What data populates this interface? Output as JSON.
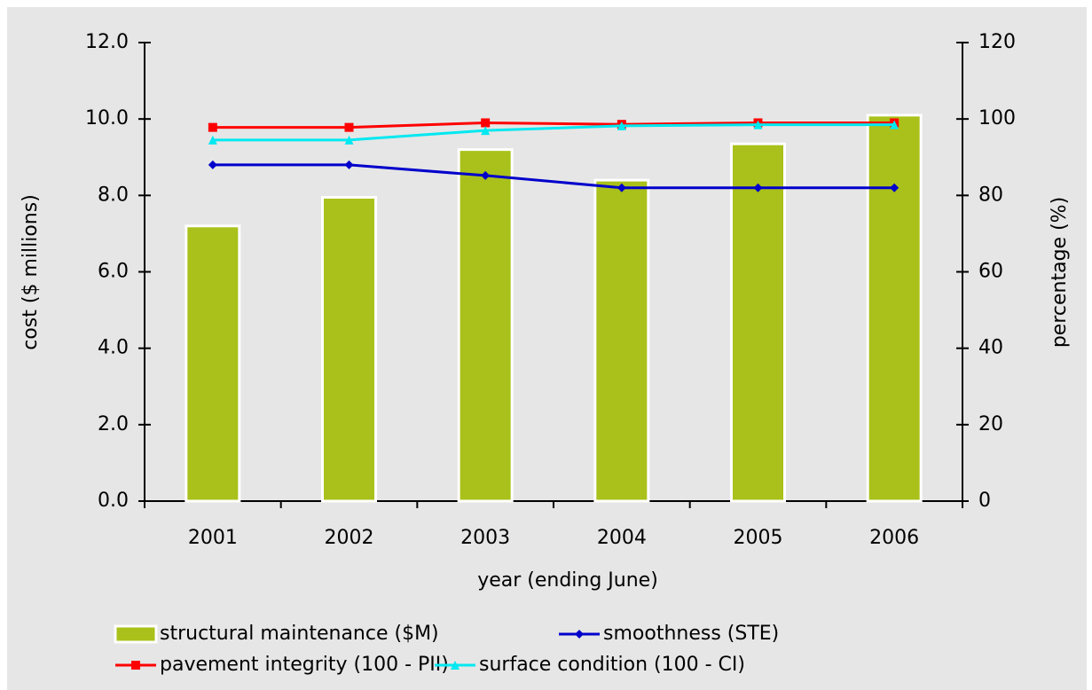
{
  "chart_data": {
    "type": "bar-line",
    "x_label": "year (ending June)",
    "y_label": "cost ($ millions)",
    "y2_label": "percentage (%)",
    "categories": [
      "2001",
      "2002",
      "2003",
      "2004",
      "2005",
      "2006"
    ],
    "series": [
      {
        "name": "structural maintenance ($M)",
        "type": "bar",
        "color": "#a9c11a",
        "values": [
          7.2,
          7.95,
          9.2,
          8.4,
          9.35,
          10.1
        ]
      },
      {
        "name": "smoothness (STE)",
        "type": "line",
        "axis": "y2",
        "marker": "diamond",
        "color": "#0000cc",
        "values": [
          88,
          88,
          85.2,
          82,
          82,
          82
        ]
      },
      {
        "name": "pavement integrity (100 - PII)",
        "type": "line",
        "axis": "y2",
        "marker": "square",
        "color": "#ff0000",
        "values": [
          97.8,
          97.8,
          99,
          98.6,
          99,
          99
        ]
      },
      {
        "name": "surface condition (100 - CI)",
        "type": "line",
        "axis": "y2",
        "marker": "triangle",
        "color": "#00e8f0",
        "values": [
          94.5,
          94.5,
          97,
          98.2,
          98.5,
          98.5
        ]
      }
    ],
    "ylim": [
      0,
      12
    ],
    "yticks": [
      {
        "value": 0,
        "label": "0.0"
      },
      {
        "value": 2,
        "label": "2.0"
      },
      {
        "value": 4,
        "label": "4.0"
      },
      {
        "value": 6,
        "label": "6.0"
      },
      {
        "value": 8,
        "label": "8.0"
      },
      {
        "value": 10,
        "label": "10.0"
      },
      {
        "value": 12,
        "label": "12.0"
      }
    ],
    "y2lim": [
      0,
      120
    ],
    "y2ticks": [
      0,
      20,
      40,
      60,
      80,
      100,
      120
    ],
    "grid": false
  }
}
